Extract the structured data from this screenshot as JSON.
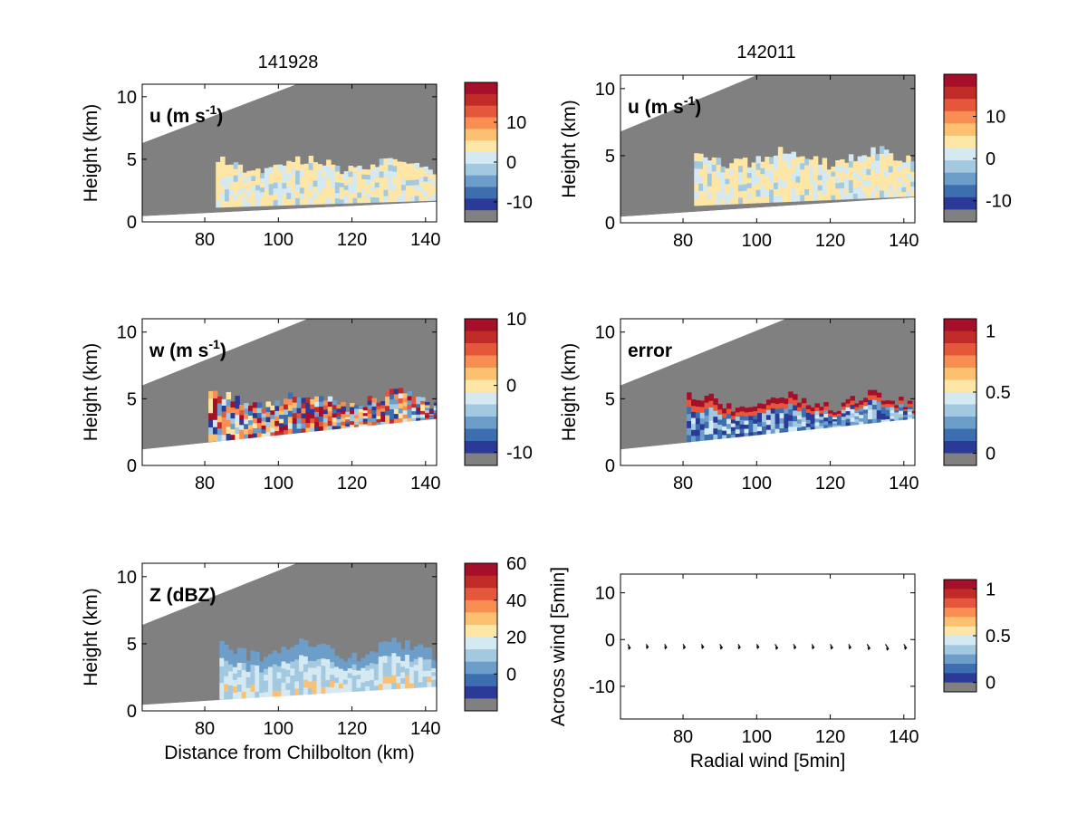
{
  "figure": {
    "column_titles": [
      "141928",
      "142011"
    ],
    "colors": {
      "masked_gray": "#808080",
      "frame": "#000000",
      "palette": [
        "#2b3a97",
        "#3d6fb0",
        "#6c9ec9",
        "#a3c9e1",
        "#d4e9f1",
        "#fde6a6",
        "#fdc070",
        "#f98e52",
        "#e4573b",
        "#c02a27",
        "#a50f2a"
      ]
    }
  },
  "chart_data": [
    {
      "id": "u-141928",
      "type": "heatmap",
      "title": "141928",
      "field_label": {
        "main": "u (m s",
        "sup": "-1",
        "close": ")"
      },
      "xlabel": "",
      "ylabel": "Height (km)",
      "xlim": [
        63,
        143
      ],
      "ylim": [
        0,
        11
      ],
      "xticks": [
        80,
        100,
        120,
        140
      ],
      "yticks": [
        0,
        5,
        10
      ],
      "sweep": {
        "lower": [
          [
            63,
            0.45
          ],
          [
            143,
            1.6
          ]
        ],
        "upper": [
          [
            63,
            6.3
          ],
          [
            105,
            11
          ]
        ]
      },
      "echo": {
        "x_range": [
          83,
          143
        ],
        "base_km": 2.0,
        "top_km": 5.0
      },
      "colorbar": {
        "ticks": [
          10,
          0,
          -10
        ],
        "range": [
          -15,
          20
        ],
        "has_gray_bottom": true
      }
    },
    {
      "id": "u-142011",
      "type": "heatmap",
      "title": "142011",
      "field_label": {
        "main": "u (m s",
        "sup": "-1",
        "close": ")"
      },
      "xlabel": "",
      "ylabel": "Height (km)",
      "xlim": [
        63,
        143
      ],
      "ylim": [
        0,
        11
      ],
      "xticks": [
        80,
        100,
        120,
        140
      ],
      "yticks": [
        0,
        5,
        10
      ],
      "sweep": {
        "lower": [
          [
            63,
            0.45
          ],
          [
            143,
            1.9
          ]
        ],
        "upper": [
          [
            63,
            6.8
          ],
          [
            100,
            11
          ]
        ]
      },
      "echo": {
        "x_range": [
          83,
          143
        ],
        "base_km": 2.2,
        "top_km": 5.3
      },
      "colorbar": {
        "ticks": [
          10,
          0,
          -10
        ],
        "range": [
          -15,
          20
        ],
        "has_gray_bottom": true
      }
    },
    {
      "id": "w-141928",
      "type": "heatmap",
      "title": "",
      "field_label": {
        "main": "w (m s",
        "sup": "-1",
        "close": ")"
      },
      "xlabel": "",
      "ylabel": "Height (km)",
      "xlim": [
        63,
        143
      ],
      "ylim": [
        0,
        11
      ],
      "xticks": [
        80,
        100,
        120,
        140
      ],
      "yticks": [
        0,
        5,
        10
      ],
      "sweep": {
        "lower": [
          [
            63,
            1.2
          ],
          [
            143,
            3.5
          ]
        ],
        "upper": [
          [
            63,
            6.0
          ],
          [
            108,
            11
          ]
        ]
      },
      "echo": {
        "x_range": [
          81,
          143
        ],
        "base_km": 2.0,
        "top_km": 5.4
      },
      "colorbar": {
        "ticks": [
          10,
          0,
          -10
        ],
        "range": [
          -12,
          10
        ],
        "has_gray_bottom": true
      }
    },
    {
      "id": "error-142011",
      "type": "heatmap",
      "title": "",
      "field_label": {
        "main": "error",
        "sup": "",
        "close": ""
      },
      "xlabel": "",
      "ylabel": "Height (km)",
      "xlim": [
        63,
        143
      ],
      "ylim": [
        0,
        11
      ],
      "xticks": [
        80,
        100,
        120,
        140
      ],
      "yticks": [
        0,
        5,
        10
      ],
      "sweep": {
        "lower": [
          [
            63,
            1.2
          ],
          [
            143,
            3.5
          ]
        ],
        "upper": [
          [
            63,
            6.0
          ],
          [
            108,
            11
          ]
        ]
      },
      "echo": {
        "x_range": [
          81,
          143
        ],
        "base_km": 1.9,
        "top_km": 5.3
      },
      "colorbar": {
        "ticks": [
          1,
          0.5,
          0
        ],
        "range": [
          -0.1,
          1.1
        ],
        "has_gray_bottom": true
      }
    },
    {
      "id": "Z-141928",
      "type": "heatmap",
      "title": "",
      "field_label": {
        "main": "Z (dBZ)",
        "sup": "",
        "close": ""
      },
      "xlabel": "Distance from Chilbolton (km)",
      "ylabel": "Height (km)",
      "xlim": [
        63,
        143
      ],
      "ylim": [
        0,
        11
      ],
      "xticks": [
        80,
        100,
        120,
        140
      ],
      "yticks": [
        0,
        5,
        10
      ],
      "sweep": {
        "lower": [
          [
            63,
            0.45
          ],
          [
            143,
            1.8
          ]
        ],
        "upper": [
          [
            63,
            6.4
          ],
          [
            105,
            11
          ]
        ]
      },
      "echo": {
        "x_range": [
          84,
          143
        ],
        "base_km": 1.0,
        "top_km": 5.0
      },
      "colorbar": {
        "ticks": [
          60,
          40,
          20,
          0
        ],
        "range": [
          -20,
          60
        ],
        "has_gray_bottom": true
      }
    },
    {
      "id": "quiver-142011",
      "type": "scatter",
      "title": "",
      "xlabel": "Radial wind [5min]",
      "ylabel": "Across wind [5min]",
      "xlim": [
        63,
        143
      ],
      "ylim": [
        -17,
        14
      ],
      "xticks": [
        80,
        100,
        120,
        140
      ],
      "yticks": [
        10,
        0,
        -10
      ],
      "arrows": {
        "x": [
          65,
          70,
          75,
          80,
          85,
          90,
          95,
          100,
          105,
          110,
          115,
          120,
          125,
          130,
          135,
          140
        ],
        "y": [
          -1,
          -1,
          -1,
          -1,
          -1,
          -1,
          -1,
          -1,
          -1,
          -1,
          -1,
          -1,
          -1,
          -1,
          -1,
          -1
        ],
        "u": [
          1.2,
          1.0,
          1.0,
          1.1,
          1.1,
          1.2,
          1.0,
          1.1,
          1.3,
          1.2,
          1.1,
          1.2,
          1.1,
          1.4,
          1.5,
          1.3
        ],
        "v": [
          -1.5,
          -1.2,
          -1.3,
          -1.3,
          -1.2,
          -1.4,
          -1.3,
          -1.2,
          -1.5,
          -1.3,
          -1.3,
          -1.4,
          -1.3,
          -1.6,
          -1.8,
          -1.5
        ]
      },
      "colorbar": {
        "ticks": [
          1,
          0.5,
          0
        ],
        "range": [
          -0.1,
          1.1
        ],
        "has_gray_bottom": true
      }
    }
  ]
}
